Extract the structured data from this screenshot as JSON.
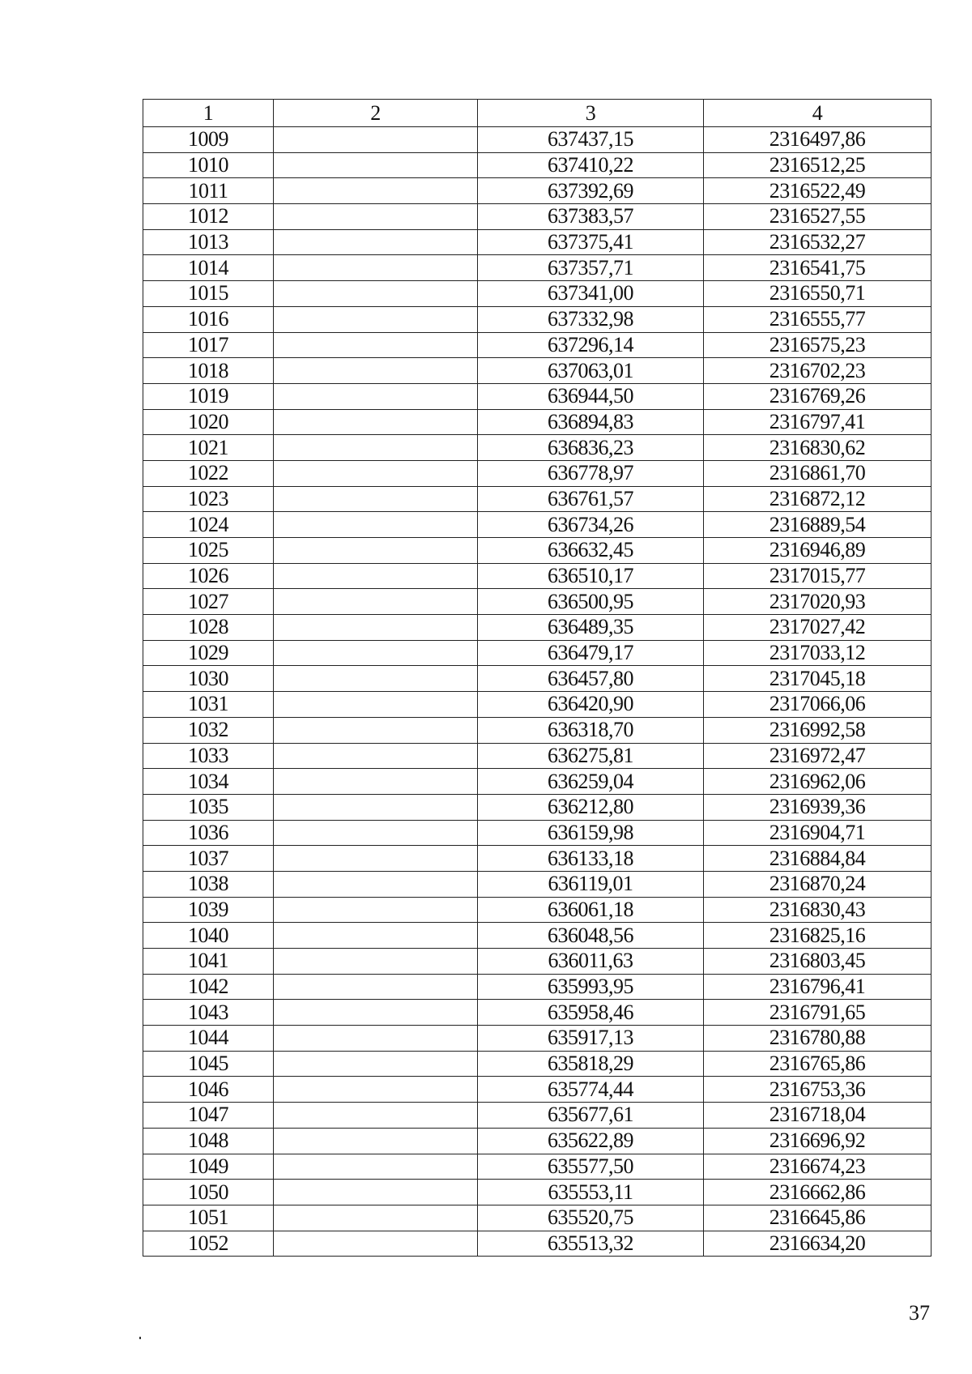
{
  "table": {
    "headers": [
      "1",
      "2",
      "3",
      "4"
    ],
    "rows": [
      [
        "1009",
        "",
        "637437,15",
        "2316497,86"
      ],
      [
        "1010",
        "",
        "637410,22",
        "2316512,25"
      ],
      [
        "1011",
        "",
        "637392,69",
        "2316522,49"
      ],
      [
        "1012",
        "",
        "637383,57",
        "2316527,55"
      ],
      [
        "1013",
        "",
        "637375,41",
        "2316532,27"
      ],
      [
        "1014",
        "",
        "637357,71",
        "2316541,75"
      ],
      [
        "1015",
        "",
        "637341,00",
        "2316550,71"
      ],
      [
        "1016",
        "",
        "637332,98",
        "2316555,77"
      ],
      [
        "1017",
        "",
        "637296,14",
        "2316575,23"
      ],
      [
        "1018",
        "",
        "637063,01",
        "2316702,23"
      ],
      [
        "1019",
        "",
        "636944,50",
        "2316769,26"
      ],
      [
        "1020",
        "",
        "636894,83",
        "2316797,41"
      ],
      [
        "1021",
        "",
        "636836,23",
        "2316830,62"
      ],
      [
        "1022",
        "",
        "636778,97",
        "2316861,70"
      ],
      [
        "1023",
        "",
        "636761,57",
        "2316872,12"
      ],
      [
        "1024",
        "",
        "636734,26",
        "2316889,54"
      ],
      [
        "1025",
        "",
        "636632,45",
        "2316946,89"
      ],
      [
        "1026",
        "",
        "636510,17",
        "2317015,77"
      ],
      [
        "1027",
        "",
        "636500,95",
        "2317020,93"
      ],
      [
        "1028",
        "",
        "636489,35",
        "2317027,42"
      ],
      [
        "1029",
        "",
        "636479,17",
        "2317033,12"
      ],
      [
        "1030",
        "",
        "636457,80",
        "2317045,18"
      ],
      [
        "1031",
        "",
        "636420,90",
        "2317066,06"
      ],
      [
        "1032",
        "",
        "636318,70",
        "2316992,58"
      ],
      [
        "1033",
        "",
        "636275,81",
        "2316972,47"
      ],
      [
        "1034",
        "",
        "636259,04",
        "2316962,06"
      ],
      [
        "1035",
        "",
        "636212,80",
        "2316939,36"
      ],
      [
        "1036",
        "",
        "636159,98",
        "2316904,71"
      ],
      [
        "1037",
        "",
        "636133,18",
        "2316884,84"
      ],
      [
        "1038",
        "",
        "636119,01",
        "2316870,24"
      ],
      [
        "1039",
        "",
        "636061,18",
        "2316830,43"
      ],
      [
        "1040",
        "",
        "636048,56",
        "2316825,16"
      ],
      [
        "1041",
        "",
        "636011,63",
        "2316803,45"
      ],
      [
        "1042",
        "",
        "635993,95",
        "2316796,41"
      ],
      [
        "1043",
        "",
        "635958,46",
        "2316791,65"
      ],
      [
        "1044",
        "",
        "635917,13",
        "2316780,88"
      ],
      [
        "1045",
        "",
        "635818,29",
        "2316765,86"
      ],
      [
        "1046",
        "",
        "635774,44",
        "2316753,36"
      ],
      [
        "1047",
        "",
        "635677,61",
        "2316718,04"
      ],
      [
        "1048",
        "",
        "635622,89",
        "2316696,92"
      ],
      [
        "1049",
        "",
        "635577,50",
        "2316674,23"
      ],
      [
        "1050",
        "",
        "635553,11",
        "2316662,86"
      ],
      [
        "1051",
        "",
        "635520,75",
        "2316645,86"
      ],
      [
        "1052",
        "",
        "635513,32",
        "2316634,20"
      ]
    ]
  },
  "page_number": "37"
}
